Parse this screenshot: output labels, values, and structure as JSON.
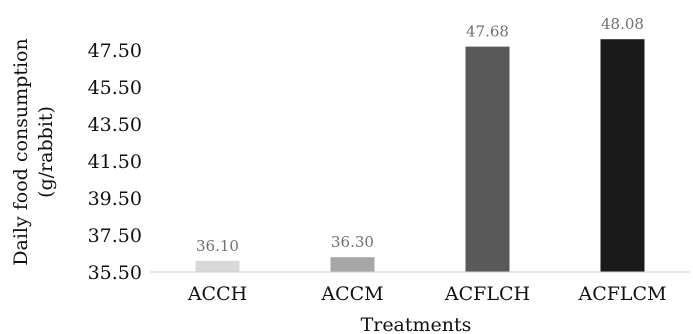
{
  "chart_data": {
    "type": "bar",
    "categories": [
      "ACCH",
      "ACCM",
      "ACFLCH",
      "ACFLCM"
    ],
    "values": [
      36.1,
      36.3,
      47.68,
      48.08
    ],
    "value_labels": [
      "36.10",
      "36.30",
      "47.68",
      "48.08"
    ],
    "colors": [
      "#d9d9d9",
      "#a6a6a6",
      "#595959",
      "#1a1a1a"
    ],
    "label_color": "#707070",
    "ylabel_line1": "Daily food consumption",
    "ylabel_line2": "(g/rabbit)",
    "xlabel": "Treatments",
    "y_ticks": [
      35.5,
      37.5,
      39.5,
      41.5,
      43.5,
      45.5,
      47.5
    ],
    "y_tick_labels": [
      "35.50",
      "37.50",
      "39.50",
      "41.50",
      "43.50",
      "45.50",
      "47.50"
    ],
    "ylim": [
      35.5,
      48.2
    ],
    "grid": false,
    "legend": "none"
  }
}
